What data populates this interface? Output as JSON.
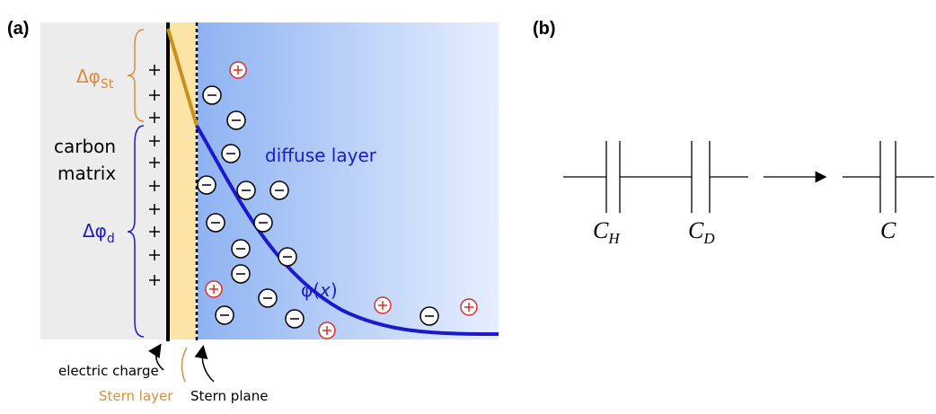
{
  "panel_a": {
    "label": "(a)",
    "stern_potential": {
      "symbol": "Δφ",
      "subscript": "St"
    },
    "electrode": [
      "carbon",
      "matrix"
    ],
    "diffuse_potential": {
      "symbol": "Δφ",
      "subscript": "d"
    },
    "diffuse_layer": "diffuse layer",
    "potential_curve": [
      "φ(",
      "x",
      ")"
    ],
    "pointers": [
      "electric charge",
      "Stern layer",
      "Stern plane"
    ]
  },
  "panel_b": {
    "label": "(b)",
    "capacitors": [
      {
        "symbol": "C",
        "subscript": "H"
      },
      {
        "symbol": "C",
        "subscript": "D"
      },
      {
        "symbol": "C"
      }
    ]
  }
}
